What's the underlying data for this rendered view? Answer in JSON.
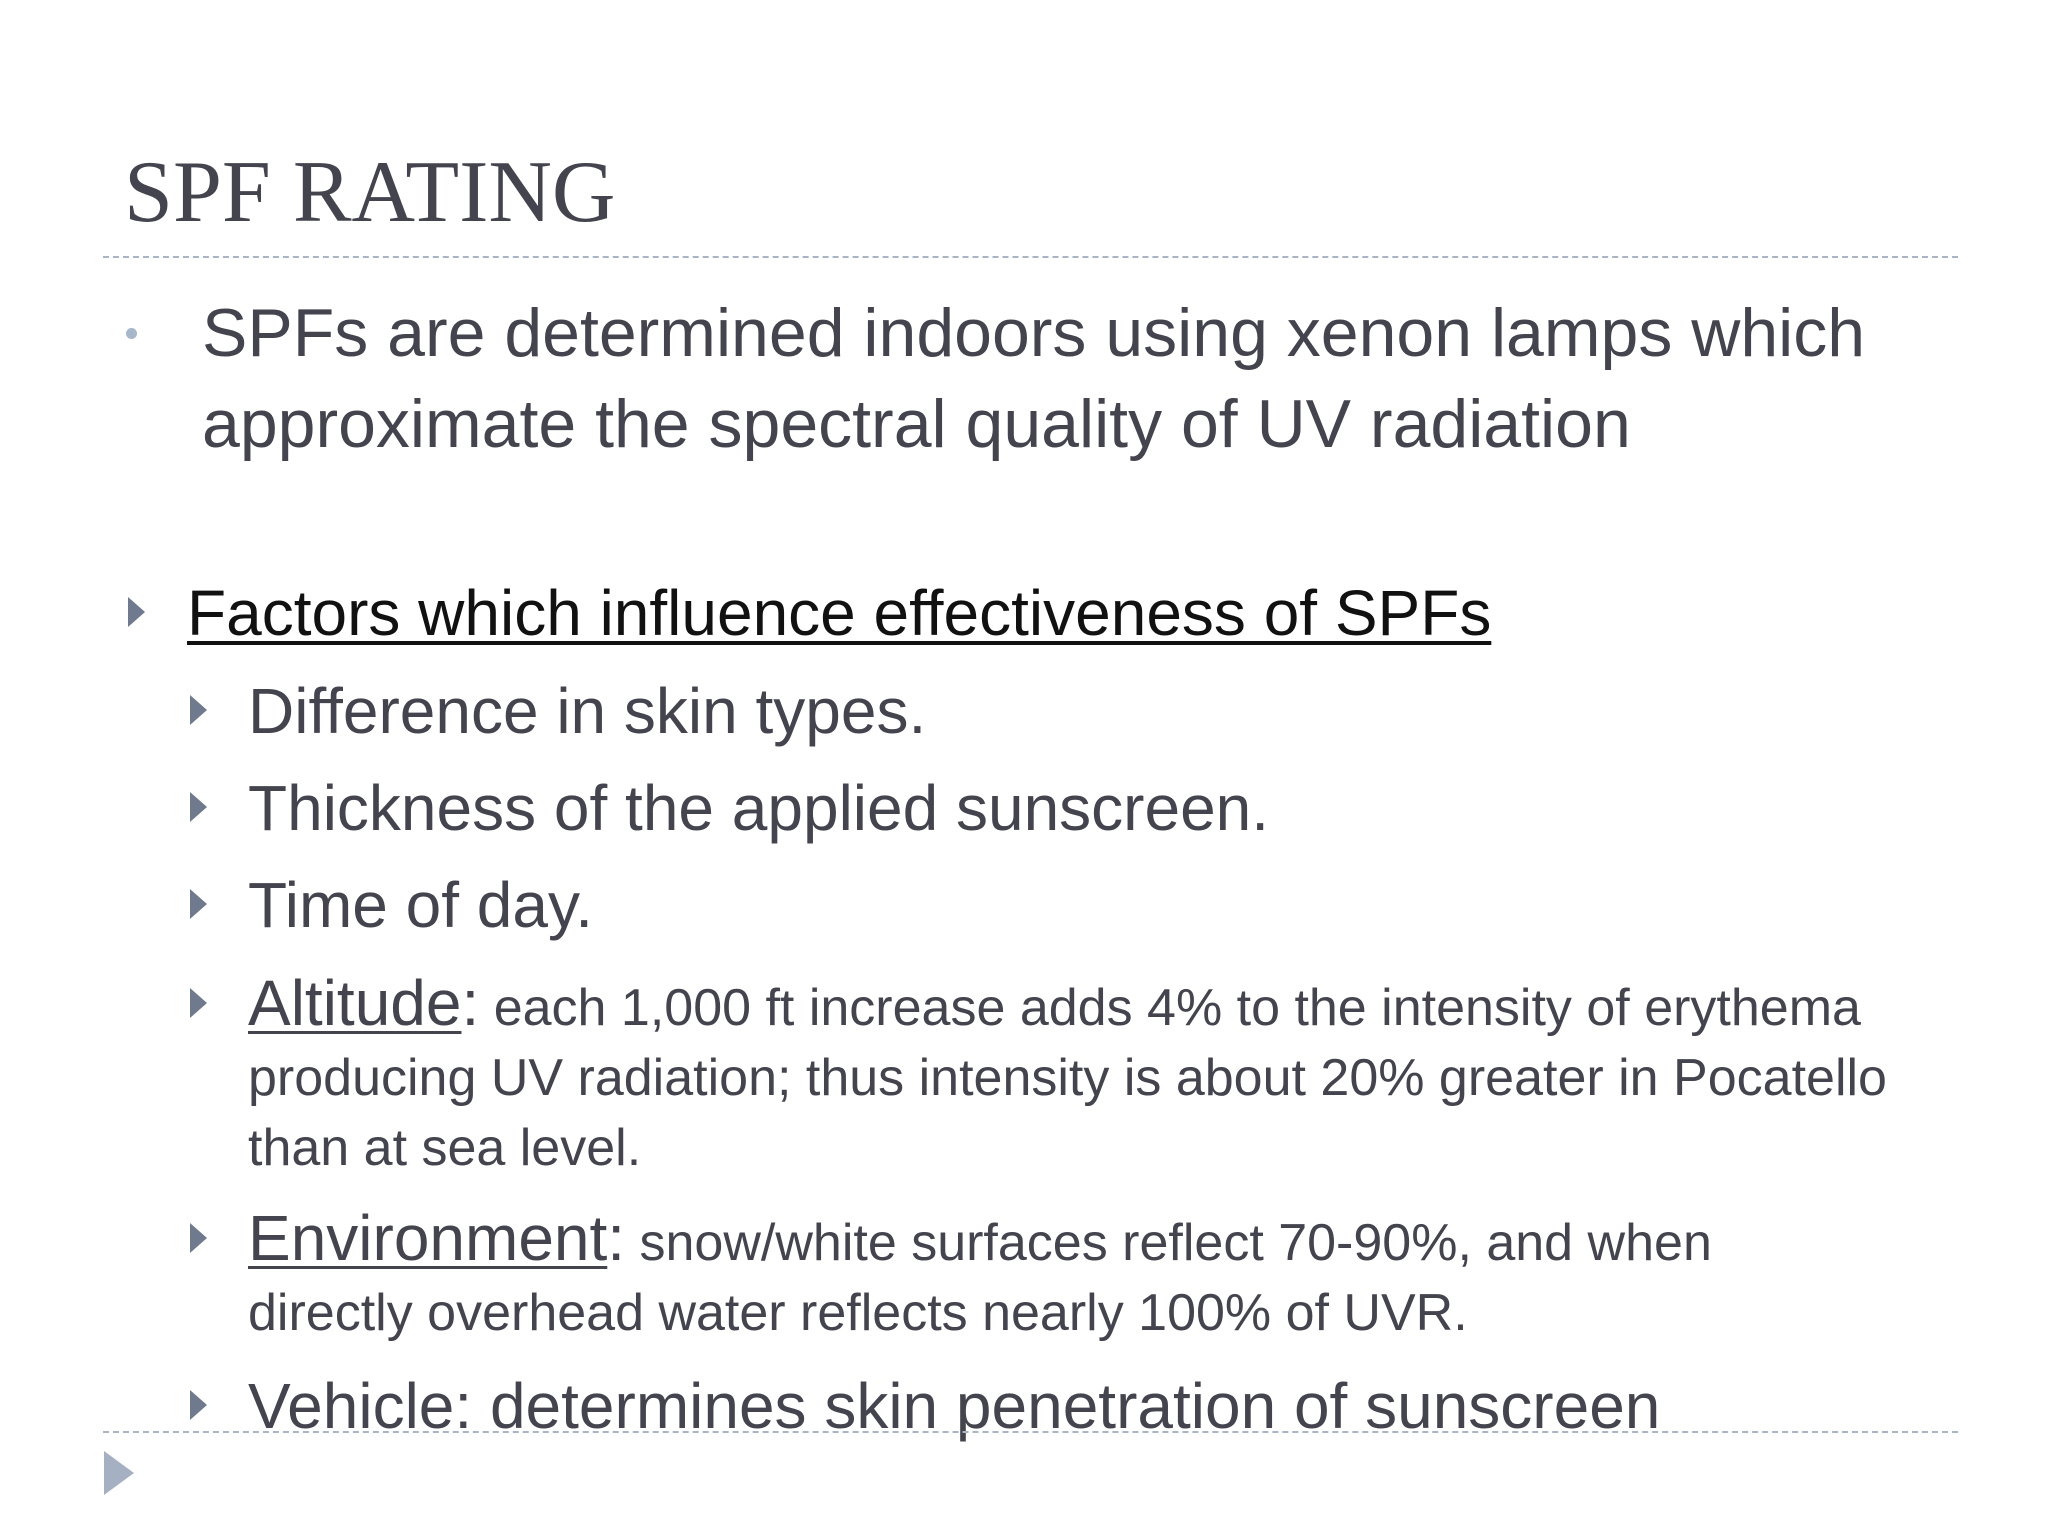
{
  "slide": {
    "title": "SPF RATING",
    "lead_bullet": "SPFs are determined indoors using xenon lamps which approximate the spectral quality of UV radiation",
    "section_heading": "Factors which influence effectiveness of SPFs",
    "factors": [
      {
        "text": "Difference in skin types."
      },
      {
        "text": "Thickness of the applied sunscreen."
      },
      {
        "text": "Time of day."
      },
      {
        "term": "Altitude",
        "separator": ":",
        "detail": " each 1,000 ft increase adds 4% to the intensity of erythema producing UV radiation; thus intensity is about 20% greater in Pocatello than at sea level."
      },
      {
        "term": "Environment",
        "separator": ":",
        "detail": " snow/white surfaces reflect 70-90%, and when directly overhead water reflects nearly 100% of UVR."
      },
      {
        "text": "Vehicle: determines skin penetration of sunscreen"
      }
    ]
  },
  "icons": {
    "lead_bullet": "round-bullet-icon",
    "list_bullet": "triangle-bullet-icon",
    "navigation": "next-slide-arrow-icon"
  },
  "colors": {
    "body_text": "#44444f",
    "heading_text": "#111111",
    "rule": "#a9b4c4",
    "bullet_dot": "#a6b6cb",
    "triangle_bullet": "#6f7a8f",
    "nav_arrow": "#a6b0c3"
  }
}
